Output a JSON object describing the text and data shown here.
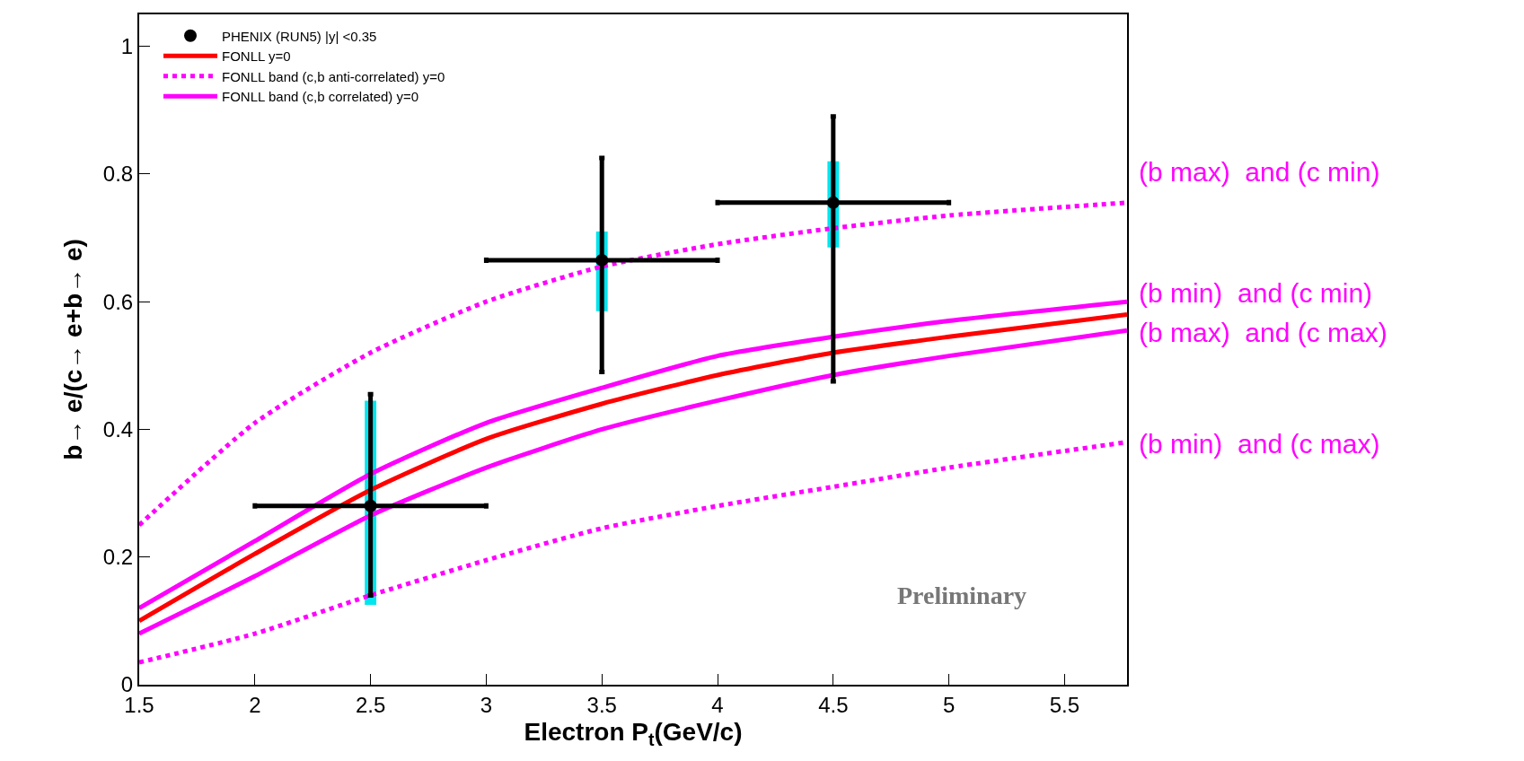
{
  "chart_data": {
    "type": "line",
    "xlabel": "Electron P$_{t}$(GeV/c)",
    "ylabel": "b→ e/(c→ e+b→ e)",
    "xlim": [
      1.5,
      5.77
    ],
    "xticks": [
      1.5,
      2,
      2.5,
      3,
      3.5,
      4,
      4.5,
      5,
      5.5
    ],
    "ylim": [
      0,
      1.05
    ],
    "yticks": [
      0,
      0.2,
      0.4,
      0.6,
      0.8,
      1
    ],
    "legend": "top left",
    "series": [
      {
        "name": "FONLL y=0",
        "type": "line",
        "color": "#ff0000",
        "line_style": "solid",
        "x": [
          1.5,
          2,
          2.5,
          3,
          3.5,
          4,
          4.5,
          5,
          5.77
        ],
        "values": [
          0.1,
          0.205,
          0.305,
          0.385,
          0.44,
          0.485,
          0.52,
          0.545,
          0.58
        ]
      },
      {
        "name": "FONLL band (c,b anti-correlated) y=0",
        "type": "line",
        "color": "#ff00ff",
        "line_style": "dotted",
        "x": [
          1.5,
          2,
          2.5,
          3,
          3.5,
          4,
          4.5,
          5,
          5.77
        ],
        "values": [
          0.25,
          0.41,
          0.52,
          0.6,
          0.655,
          0.69,
          0.715,
          0.735,
          0.755
        ]
      },
      {
        "type": "line",
        "color": "#ff00ff",
        "line_style": "dotted",
        "x": [
          1.5,
          2,
          2.5,
          3,
          3.5,
          4,
          4.5,
          5,
          5.77
        ],
        "values": [
          0.035,
          0.08,
          0.14,
          0.195,
          0.245,
          0.28,
          0.31,
          0.34,
          0.38
        ]
      },
      {
        "name": "FONLL band (c,b correlated) y=0",
        "type": "line",
        "color": "#ff00ff",
        "line_style": "solid",
        "x": [
          1.5,
          2,
          2.5,
          3,
          3.5,
          4,
          4.5,
          5,
          5.77
        ],
        "values": [
          0.12,
          0.225,
          0.33,
          0.41,
          0.465,
          0.515,
          0.545,
          0.57,
          0.6
        ]
      },
      {
        "type": "line",
        "color": "#ff00ff",
        "line_style": "solid",
        "x": [
          1.5,
          2,
          2.5,
          3,
          3.5,
          4,
          4.5,
          5,
          5.77
        ],
        "values": [
          0.08,
          0.17,
          0.265,
          0.34,
          0.4,
          0.445,
          0.485,
          0.515,
          0.555
        ]
      },
      {
        "type": "bar",
        "color": "#00e5ee",
        "x": [
          2.5,
          3.5,
          4.5
        ],
        "base": [
          0.125,
          0.585,
          0.685
        ],
        "values": [
          0.32,
          0.125,
          0.135
        ]
      },
      {
        "name": "PHENIX (RUN5) |y| <0.35",
        "type": "scatter",
        "marker": "circle",
        "color": "#000000",
        "x": [
          2.5,
          3.5,
          4.5
        ],
        "values": [
          0.28,
          0.665,
          0.755
        ],
        "errors": [
          [
            0.14,
            0.455
          ],
          [
            0.49,
            0.825
          ],
          [
            0.475,
            0.89
          ]
        ],
        "xerrors": [
          0.5,
          0.5,
          0.5
        ]
      }
    ],
    "annotations": [
      "Preliminary",
      "(b max)  and (c min)",
      "(b min)  and (c min)",
      "(b max)  and (c max)",
      "(b min)  and (c max)"
    ]
  }
}
